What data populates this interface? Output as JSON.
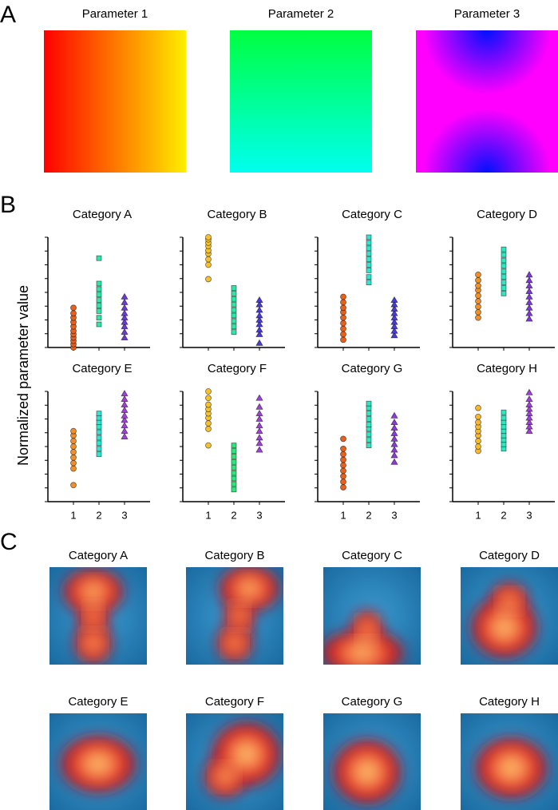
{
  "panel_labels": [
    "A",
    "B",
    "C"
  ],
  "y_label": "Normalized parameter value",
  "parameters": [
    {
      "title": "Parameter 1",
      "direction": "horizontal",
      "colors": [
        "#ff0000",
        "#ffee00"
      ]
    },
    {
      "title": "Parameter 2",
      "direction": "vertical",
      "colors": [
        "#00ff40",
        "#00ffee"
      ]
    },
    {
      "title": "Parameter 3",
      "direction": "poles",
      "colors": [
        "#ff00ff",
        "#0010ff"
      ]
    }
  ],
  "chart_data": [
    {
      "type": "scatter",
      "title": "Category A",
      "xlim": [
        0,
        4
      ],
      "xticks": [
        1,
        2,
        3
      ],
      "ylim": [
        0,
        1
      ],
      "yticks": [
        0,
        0.125,
        0.25,
        0.375,
        0.5,
        0.625,
        0.75,
        0.875,
        1
      ],
      "series": [
        {
          "x": 1,
          "marker": "circle",
          "color": "#e8601c",
          "values": [
            0.0,
            0.03,
            0.06,
            0.09,
            0.12,
            0.15,
            0.19,
            0.23,
            0.27,
            0.31,
            0.36
          ]
        },
        {
          "x": 2,
          "marker": "square",
          "color": "#2ee6a8",
          "values": [
            0.21,
            0.27,
            0.33,
            0.38,
            0.43,
            0.48,
            0.53,
            0.58,
            0.81
          ]
        },
        {
          "x": 3,
          "marker": "triangle",
          "color": "#6a3ad8",
          "values": [
            0.09,
            0.14,
            0.19,
            0.23,
            0.27,
            0.31,
            0.36,
            0.41,
            0.46
          ]
        }
      ]
    },
    {
      "type": "scatter",
      "title": "Category B",
      "xlim": [
        0,
        4
      ],
      "xticks": [
        1,
        2,
        3
      ],
      "ylim": [
        0,
        1
      ],
      "yticks": [
        0,
        0.125,
        0.25,
        0.375,
        0.5,
        0.625,
        0.75,
        0.875,
        1
      ],
      "series": [
        {
          "x": 1,
          "marker": "circle",
          "color": "#f5c22e",
          "values": [
            0.62,
            0.75,
            0.8,
            0.85,
            0.88,
            0.92,
            0.95,
            0.98,
            1.0
          ]
        },
        {
          "x": 2,
          "marker": "square",
          "color": "#2ee6a8",
          "values": [
            0.14,
            0.19,
            0.24,
            0.29,
            0.34,
            0.39,
            0.44,
            0.49,
            0.54
          ]
        },
        {
          "x": 3,
          "marker": "triangle",
          "color": "#4a3ad8",
          "values": [
            0.04,
            0.12,
            0.16,
            0.21,
            0.25,
            0.29,
            0.34,
            0.39,
            0.43
          ]
        }
      ]
    },
    {
      "type": "scatter",
      "title": "Category C",
      "xlim": [
        0,
        4
      ],
      "xticks": [
        1,
        2,
        3
      ],
      "ylim": [
        0,
        1
      ],
      "yticks": [
        0,
        0.125,
        0.25,
        0.375,
        0.5,
        0.625,
        0.75,
        0.875,
        1
      ],
      "series": [
        {
          "x": 1,
          "marker": "circle",
          "color": "#e8601c",
          "values": [
            0.07,
            0.12,
            0.17,
            0.22,
            0.27,
            0.32,
            0.36,
            0.41,
            0.46
          ]
        },
        {
          "x": 2,
          "marker": "square",
          "color": "#2ee6d0",
          "values": [
            0.59,
            0.64,
            0.7,
            0.75,
            0.8,
            0.85,
            0.9,
            0.95,
            1.0
          ]
        },
        {
          "x": 3,
          "marker": "triangle",
          "color": "#4a3ad8",
          "values": [
            0.11,
            0.15,
            0.19,
            0.23,
            0.27,
            0.31,
            0.35,
            0.39,
            0.43
          ]
        }
      ]
    },
    {
      "type": "scatter",
      "title": "Category D",
      "xlim": [
        0,
        4
      ],
      "xticks": [
        1,
        2,
        3
      ],
      "ylim": [
        0,
        1
      ],
      "yticks": [
        0,
        0.125,
        0.25,
        0.375,
        0.5,
        0.625,
        0.75,
        0.875,
        1
      ],
      "series": [
        {
          "x": 1,
          "marker": "circle",
          "color": "#f0902a",
          "values": [
            0.27,
            0.32,
            0.37,
            0.42,
            0.47,
            0.52,
            0.56,
            0.61,
            0.66
          ]
        },
        {
          "x": 2,
          "marker": "square",
          "color": "#2ee6c0",
          "values": [
            0.49,
            0.54,
            0.59,
            0.64,
            0.69,
            0.74,
            0.79,
            0.84,
            0.89
          ]
        },
        {
          "x": 3,
          "marker": "triangle",
          "color": "#7a3ad8",
          "values": [
            0.26,
            0.31,
            0.36,
            0.41,
            0.46,
            0.51,
            0.56,
            0.61,
            0.66
          ]
        }
      ]
    },
    {
      "type": "scatter",
      "title": "Category E",
      "xlim": [
        0,
        4
      ],
      "xticks": [
        1,
        2,
        3
      ],
      "ylim": [
        0,
        1
      ],
      "yticks": [
        0,
        0.125,
        0.25,
        0.375,
        0.5,
        0.625,
        0.75,
        0.875,
        1
      ],
      "series": [
        {
          "x": 1,
          "marker": "circle",
          "color": "#f0902a",
          "values": [
            0.15,
            0.3,
            0.35,
            0.4,
            0.45,
            0.5,
            0.55,
            0.6,
            0.64
          ]
        },
        {
          "x": 2,
          "marker": "square",
          "color": "#2ee6d0",
          "values": [
            0.43,
            0.48,
            0.53,
            0.58,
            0.63,
            0.68,
            0.72,
            0.76,
            0.8
          ]
        },
        {
          "x": 3,
          "marker": "triangle",
          "color": "#a040d8",
          "values": [
            0.59,
            0.64,
            0.69,
            0.74,
            0.78,
            0.83,
            0.88,
            0.93,
            0.98
          ]
        }
      ]
    },
    {
      "type": "scatter",
      "title": "Category F",
      "xlim": [
        0,
        4
      ],
      "xticks": [
        1,
        2,
        3
      ],
      "ylim": [
        0,
        1
      ],
      "yticks": [
        0,
        0.125,
        0.25,
        0.375,
        0.5,
        0.625,
        0.75,
        0.875,
        1
      ],
      "series": [
        {
          "x": 1,
          "marker": "circle",
          "color": "#f5c22e",
          "values": [
            0.51,
            0.66,
            0.71,
            0.76,
            0.8,
            0.84,
            0.88,
            0.94,
            1.0
          ]
        },
        {
          "x": 2,
          "marker": "square",
          "color": "#2ee67a",
          "values": [
            0.11,
            0.16,
            0.21,
            0.26,
            0.31,
            0.36,
            0.41,
            0.46,
            0.51
          ]
        },
        {
          "x": 3,
          "marker": "triangle",
          "color": "#a040d8",
          "values": [
            0.47,
            0.53,
            0.58,
            0.64,
            0.69,
            0.75,
            0.8,
            0.86,
            0.94
          ]
        }
      ]
    },
    {
      "type": "scatter",
      "title": "Category G",
      "xlim": [
        0,
        4
      ],
      "xticks": [
        1,
        2,
        3
      ],
      "ylim": [
        0,
        1
      ],
      "yticks": [
        0,
        0.125,
        0.25,
        0.375,
        0.5,
        0.625,
        0.75,
        0.875,
        1
      ],
      "series": [
        {
          "x": 1,
          "marker": "circle",
          "color": "#e8601c",
          "values": [
            0.13,
            0.18,
            0.23,
            0.28,
            0.33,
            0.38,
            0.43,
            0.48,
            0.57
          ]
        },
        {
          "x": 2,
          "marker": "square",
          "color": "#2ee6c0",
          "values": [
            0.51,
            0.56,
            0.61,
            0.66,
            0.7,
            0.75,
            0.8,
            0.85,
            0.89
          ]
        },
        {
          "x": 3,
          "marker": "triangle",
          "color": "#8a3ad8",
          "values": [
            0.36,
            0.42,
            0.47,
            0.52,
            0.57,
            0.62,
            0.67,
            0.72,
            0.78
          ]
        }
      ]
    },
    {
      "type": "scatter",
      "title": "Category H",
      "xlim": [
        0,
        4
      ],
      "xticks": [
        1,
        2,
        3
      ],
      "ylim": [
        0,
        1
      ],
      "yticks": [
        0,
        0.125,
        0.25,
        0.375,
        0.5,
        0.625,
        0.75,
        0.875,
        1
      ],
      "series": [
        {
          "x": 1,
          "marker": "circle",
          "color": "#f5b82e",
          "values": [
            0.46,
            0.5,
            0.55,
            0.6,
            0.64,
            0.68,
            0.72,
            0.77,
            0.85
          ]
        },
        {
          "x": 2,
          "marker": "square",
          "color": "#2ee6c0",
          "values": [
            0.48,
            0.52,
            0.56,
            0.6,
            0.64,
            0.68,
            0.72,
            0.76,
            0.81
          ]
        },
        {
          "x": 3,
          "marker": "triangle",
          "color": "#a040d8",
          "values": [
            0.64,
            0.68,
            0.72,
            0.76,
            0.8,
            0.84,
            0.88,
            0.93,
            0.99
          ]
        }
      ]
    }
  ],
  "heatmaps": [
    {
      "title": "Category A"
    },
    {
      "title": "Category B"
    },
    {
      "title": "Category C"
    },
    {
      "title": "Category D"
    },
    {
      "title": "Category E"
    },
    {
      "title": "Category F"
    },
    {
      "title": "Category G"
    },
    {
      "title": "Category H"
    }
  ]
}
